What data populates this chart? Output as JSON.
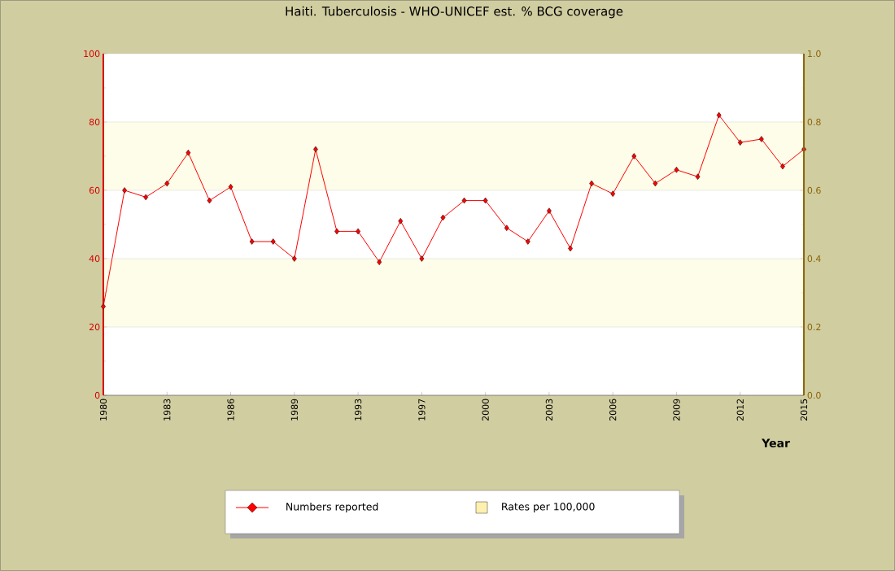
{
  "chart_data": {
    "type": "line",
    "title": "Haiti. Tuberculosis - WHO-UNICEF est. % BCG coverage",
    "xlabel": "Year",
    "categories": [
      "1980",
      null,
      null,
      "1983",
      null,
      null,
      "1986",
      null,
      null,
      "1989",
      null,
      null,
      "1993",
      null,
      null,
      "1997",
      null,
      null,
      "2000",
      null,
      null,
      "2003",
      null,
      null,
      "2006",
      null,
      null,
      "2009",
      null,
      null,
      "2012",
      null,
      null,
      "2015"
    ],
    "series": [
      {
        "name": "Numbers reported",
        "color": "#ff0000",
        "marker": "diamond",
        "values": [
          26,
          60,
          58,
          62,
          71,
          57,
          61,
          45,
          45,
          40,
          72,
          48,
          48,
          39,
          51,
          40,
          52,
          57,
          57,
          49,
          45,
          54,
          43,
          62,
          59,
          70,
          62,
          66,
          64,
          82,
          74,
          75,
          67,
          72
        ]
      },
      {
        "name": "Rates per 100,000",
        "type": "bar",
        "color": "#fff0b0",
        "values": [
          null,
          null,
          null,
          null,
          null,
          null,
          null,
          null,
          null,
          null,
          null,
          null,
          null,
          null,
          null,
          null,
          null,
          null,
          null,
          null,
          null,
          null,
          null,
          null,
          null,
          null,
          null,
          null,
          null,
          null,
          null,
          null,
          null,
          null
        ]
      }
    ],
    "ylim": [
      0,
      100
    ],
    "yticks": [
      0,
      20,
      40,
      60,
      80,
      100
    ],
    "y2lim": [
      0,
      1
    ],
    "y2ticks": [
      {
        "value": 0,
        "label": "0.0"
      },
      0.2,
      0.4,
      0.6,
      0.8,
      {
        "value": 1,
        "label": "1.0"
      }
    ],
    "bands": [
      {
        "axis": "y",
        "from": 20,
        "to": 40,
        "color": "#fdfde9"
      },
      {
        "axis": "y",
        "from": 60,
        "to": 80,
        "color": "#fdfde9"
      }
    ],
    "grid": "y",
    "legend": "bottom"
  }
}
